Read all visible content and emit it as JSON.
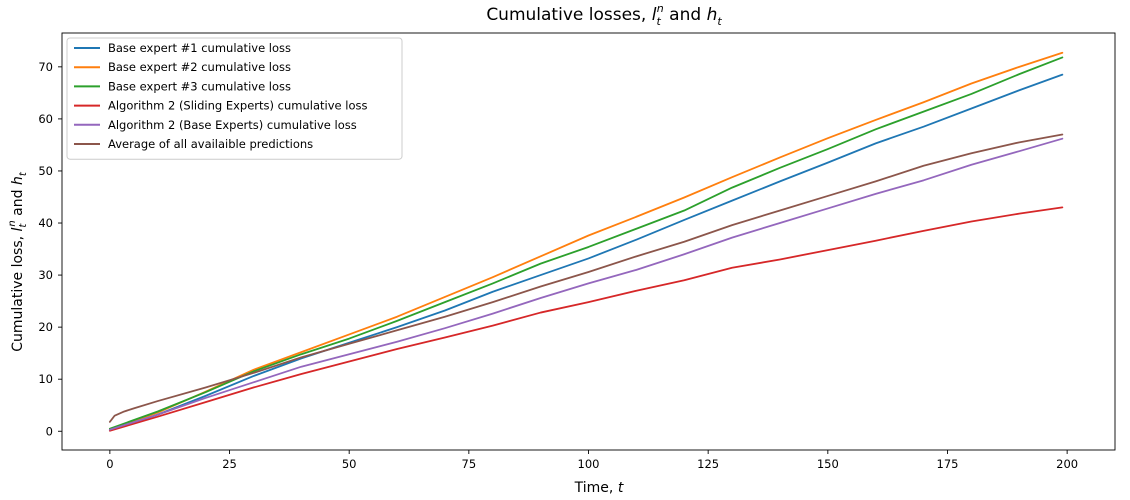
{
  "chart_data": {
    "type": "line",
    "title": "Cumulative losses, l_t^n and h_t",
    "xlabel": "Time, t",
    "ylabel": "Cumulative loss, l_t^n and h_t",
    "xlim": [
      -10,
      210
    ],
    "ylim": [
      -3.6,
      76.5
    ],
    "xticks": [
      0,
      25,
      50,
      75,
      100,
      125,
      150,
      175,
      200
    ],
    "yticks": [
      0,
      10,
      20,
      30,
      40,
      50,
      60,
      70
    ],
    "grid": false,
    "legend_position": "top-left",
    "series": [
      {
        "name": "Base expert #1 cumulative loss",
        "color": "#1f77b4",
        "x": [
          0,
          10,
          20,
          30,
          40,
          50,
          60,
          70,
          80,
          90,
          100,
          110,
          120,
          130,
          140,
          150,
          160,
          170,
          180,
          190,
          199
        ],
        "y": [
          0.2,
          3.2,
          6.8,
          10.6,
          14.0,
          17.0,
          20.0,
          23.2,
          26.8,
          30.0,
          33.2,
          36.8,
          40.6,
          44.3,
          48.0,
          51.6,
          55.3,
          58.5,
          62.0,
          65.5,
          68.5
        ]
      },
      {
        "name": "Base expert #2 cumulative loss",
        "color": "#ff7f0e",
        "x": [
          0,
          10,
          20,
          30,
          40,
          50,
          60,
          70,
          80,
          90,
          100,
          110,
          120,
          130,
          140,
          150,
          160,
          170,
          180,
          190,
          199
        ],
        "y": [
          0.4,
          3.6,
          7.6,
          11.8,
          15.2,
          18.6,
          22.0,
          25.8,
          29.6,
          33.6,
          37.6,
          41.2,
          44.9,
          48.8,
          52.6,
          56.3,
          59.8,
          63.2,
          66.8,
          70.0,
          72.7
        ]
      },
      {
        "name": "Base expert #3 cumulative loss",
        "color": "#2ca02c",
        "x": [
          0,
          10,
          20,
          30,
          40,
          50,
          60,
          70,
          80,
          90,
          100,
          110,
          120,
          130,
          140,
          150,
          160,
          170,
          180,
          190,
          199
        ],
        "y": [
          0.5,
          3.8,
          7.5,
          11.5,
          14.8,
          17.8,
          21.2,
          24.8,
          28.4,
          32.2,
          35.4,
          38.9,
          42.4,
          46.8,
          50.6,
          54.2,
          58.0,
          61.4,
          64.8,
          68.6,
          71.8
        ]
      },
      {
        "name": "Algorithm 2 (Sliding Experts) cumulative loss",
        "color": "#d62728",
        "x": [
          0,
          10,
          20,
          30,
          40,
          50,
          60,
          70,
          80,
          90,
          100,
          110,
          120,
          130,
          140,
          150,
          160,
          170,
          180,
          190,
          199
        ],
        "y": [
          0.1,
          2.8,
          5.6,
          8.4,
          11.0,
          13.4,
          15.8,
          18.0,
          20.3,
          22.8,
          24.8,
          27.0,
          29.0,
          31.4,
          33.0,
          34.8,
          36.6,
          38.5,
          40.3,
          41.8,
          43.0
        ]
      },
      {
        "name": "Algorithm 2 (Base Experts) cumulative loss",
        "color": "#9467bd",
        "x": [
          0,
          10,
          20,
          30,
          40,
          50,
          60,
          70,
          80,
          90,
          100,
          110,
          120,
          130,
          140,
          150,
          160,
          170,
          180,
          190,
          199
        ],
        "y": [
          0.3,
          3.2,
          6.4,
          9.4,
          12.4,
          14.8,
          17.2,
          19.8,
          22.6,
          25.6,
          28.4,
          31.0,
          34.0,
          37.2,
          40.0,
          42.8,
          45.6,
          48.2,
          51.2,
          53.8,
          56.2
        ]
      },
      {
        "name": "Average of all availaible predictions",
        "color": "#8c564b",
        "x": [
          0,
          1,
          3,
          5,
          10,
          20,
          30,
          40,
          50,
          60,
          70,
          80,
          90,
          100,
          110,
          120,
          130,
          140,
          150,
          160,
          170,
          180,
          190,
          199
        ],
        "y": [
          1.8,
          3.0,
          3.8,
          4.4,
          5.8,
          8.4,
          11.2,
          14.2,
          16.8,
          19.4,
          22.0,
          24.8,
          27.8,
          30.6,
          33.6,
          36.4,
          39.6,
          42.4,
          45.2,
          48.0,
          51.0,
          53.4,
          55.5,
          57.0
        ]
      }
    ]
  }
}
